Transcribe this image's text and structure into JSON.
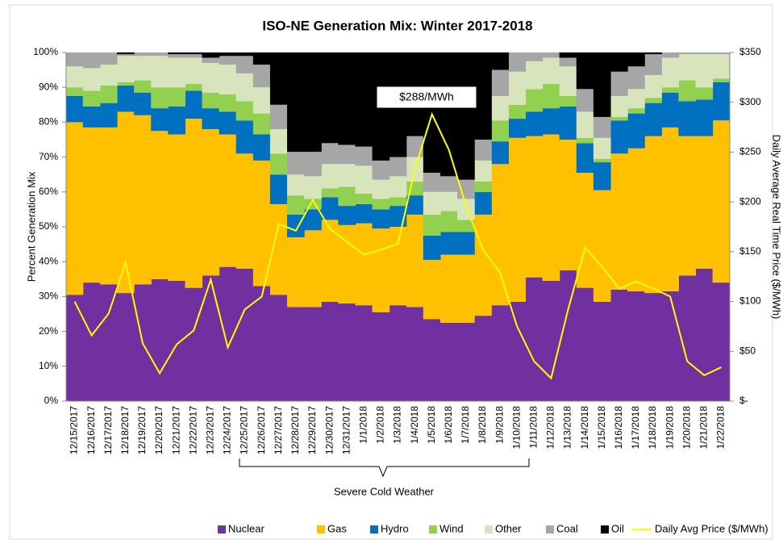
{
  "chart_data": {
    "type": "area",
    "stacked": true,
    "step": true,
    "title": "ISO-NE Generation Mix: Winter 2017-2018",
    "ylabel": "Percent Generation Mix",
    "y2label": "Daily Average Real Time Price ($/MWh)",
    "categories": [
      "12/15/2017",
      "12/16/2017",
      "12/17/2017",
      "12/18/2017",
      "12/19/2017",
      "12/20/2017",
      "12/21/2017",
      "12/22/2017",
      "12/23/2017",
      "12/24/2017",
      "12/25/2017",
      "12/26/2017",
      "12/27/2017",
      "12/28/2017",
      "12/29/2017",
      "12/30/2017",
      "12/31/2017",
      "1/1/2018",
      "1/2/2018",
      "1/3/2018",
      "1/4/2018",
      "1/5/2018",
      "1/6/2018",
      "1/7/2018",
      "1/8/2018",
      "1/9/2018",
      "1/10/2018",
      "1/11/2018",
      "1/12/2018",
      "1/13/2018",
      "1/14/2018",
      "1/15/2018",
      "1/16/2018",
      "1/17/2018",
      "1/18/2018",
      "1/19/2018",
      "1/20/2018",
      "1/21/2018",
      "1/22/2018"
    ],
    "series": [
      {
        "name": "Nuclear",
        "color": "#7030a0",
        "values": [
          30.5,
          34,
          33.5,
          31,
          33.5,
          35,
          34.5,
          32.5,
          36,
          38.5,
          38,
          33,
          30.5,
          27,
          27,
          28.5,
          28,
          27.5,
          25.5,
          27.5,
          27,
          23.5,
          22.5,
          22.5,
          24.5,
          27.5,
          28.5,
          35.5,
          34.5,
          37.5,
          32.5,
          28.5,
          32,
          31.5,
          31,
          31.5,
          36,
          38,
          34
        ]
      },
      {
        "name": "Gas",
        "color": "#ffc000",
        "values": [
          49.5,
          44.5,
          45,
          52,
          48.5,
          42.5,
          42,
          48.5,
          42,
          38,
          33,
          36,
          26,
          20,
          22,
          23.5,
          22.5,
          23.5,
          24,
          22.5,
          26.5,
          17,
          19.5,
          19.5,
          29,
          40.5,
          47,
          40.5,
          42,
          37.5,
          33,
          32,
          39,
          41,
          45,
          47,
          40,
          38,
          46.5
        ]
      },
      {
        "name": "Hydro",
        "color": "#0070c0",
        "values": [
          7.5,
          6,
          7,
          7.5,
          6.5,
          6.5,
          8,
          8,
          6,
          6.5,
          9.5,
          7.5,
          8.5,
          6.5,
          6,
          6.5,
          5.5,
          5.5,
          5.5,
          6,
          5.5,
          7,
          6.5,
          6.5,
          6.5,
          6.5,
          5.5,
          7,
          7.5,
          9.5,
          8.5,
          8,
          9.5,
          10,
          9.5,
          10,
          10,
          10.5,
          11
        ]
      },
      {
        "name": "Wind",
        "color": "#92d050",
        "values": [
          2.5,
          4.5,
          5,
          1,
          3.5,
          6,
          5.5,
          2,
          4.5,
          5,
          5.5,
          6,
          6,
          5.5,
          3,
          2.5,
          5.5,
          3,
          3,
          2.5,
          4,
          6,
          6,
          3.5,
          3,
          6,
          4,
          6.5,
          7,
          3,
          1.5,
          1,
          1,
          1.5,
          1.5,
          1.5,
          6,
          3.5,
          1
        ]
      },
      {
        "name": "Other",
        "color": "#d8e4bc",
        "values": [
          6,
          6.5,
          6,
          7.5,
          7,
          9,
          8.5,
          7.5,
          8.5,
          8.5,
          8,
          7.5,
          7,
          6,
          6.5,
          7,
          6.5,
          8,
          5.5,
          6,
          7,
          6.5,
          5.5,
          6,
          6,
          7,
          9.5,
          8,
          7.5,
          8.5,
          7.5,
          6,
          6,
          5.5,
          6.5,
          8.5,
          7.5,
          9.5,
          7
        ]
      },
      {
        "name": "Coal",
        "color": "#a6a6a6",
        "values": [
          4,
          4.5,
          3.5,
          0.5,
          1,
          1,
          1,
          1,
          1.5,
          2.5,
          5,
          6.5,
          7,
          6.5,
          7,
          6,
          5.5,
          5.5,
          5.5,
          5.5,
          6,
          5.5,
          4.5,
          5.5,
          6,
          7.5,
          5.5,
          2.5,
          1.5,
          2.5,
          6.5,
          6,
          7,
          6.5,
          6,
          1.5,
          0.5,
          0.5,
          0.5
        ]
      },
      {
        "name": "Oil",
        "color": "#000000",
        "values": [
          0,
          0,
          0,
          0.5,
          0,
          0,
          0.5,
          0.5,
          1.5,
          1,
          1,
          3.5,
          15,
          28.5,
          28.5,
          26,
          26.5,
          27,
          31,
          30,
          24,
          34.5,
          35.5,
          36.5,
          25,
          5,
          0,
          0,
          0,
          1.5,
          10.5,
          18.5,
          5.5,
          4,
          0.5,
          0,
          0,
          0,
          0
        ]
      },
      {
        "name": "Daily Avg Price ($/MWh)",
        "color": "#ffff00",
        "type": "line",
        "axis": "y2",
        "values": [
          100,
          66,
          88,
          139,
          58,
          28,
          57,
          71,
          122,
          54,
          92,
          105,
          178,
          171,
          202,
          173,
          160,
          147,
          152,
          158,
          233,
          288,
          252,
          196,
          152,
          129,
          75,
          40,
          23,
          92,
          154,
          135,
          113,
          120,
          113,
          105,
          40,
          26,
          34
        ]
      }
    ],
    "ylim": [
      0,
      100
    ],
    "yticks": [
      {
        "value": 0,
        "label": "0%"
      },
      {
        "value": 10,
        "label": "10%"
      },
      {
        "value": 20,
        "label": "20%"
      },
      {
        "value": 30,
        "label": "30%"
      },
      {
        "value": 40,
        "label": "40%"
      },
      {
        "value": 50,
        "label": "50%"
      },
      {
        "value": 60,
        "label": "60%"
      },
      {
        "value": 70,
        "label": "70%"
      },
      {
        "value": 80,
        "label": "80%"
      },
      {
        "value": 90,
        "label": "90%"
      },
      {
        "value": 100,
        "label": "100%"
      }
    ],
    "y2lim": [
      0,
      350
    ],
    "y2ticks": [
      {
        "value": 0,
        "label": "$-"
      },
      {
        "value": 50,
        "label": "$50"
      },
      {
        "value": 100,
        "label": "$100"
      },
      {
        "value": 150,
        "label": "$150"
      },
      {
        "value": 200,
        "label": "$200"
      },
      {
        "value": 250,
        "label": "$250"
      },
      {
        "value": 300,
        "label": "$300"
      },
      {
        "value": 350,
        "label": "$350"
      }
    ],
    "annotations": [
      "$288/MWh",
      "Severe Cold Weather"
    ],
    "legend": "bottom",
    "grid": false
  }
}
